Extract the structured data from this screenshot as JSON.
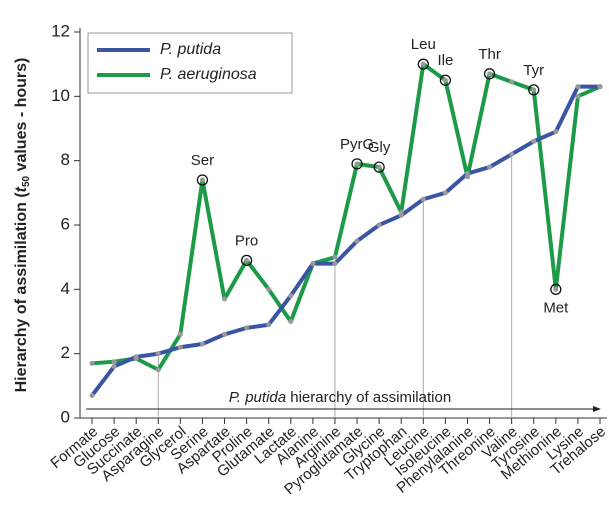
{
  "chart_data": {
    "type": "line",
    "ylabel": {
      "prefix": "Hierarchy of assimilation (",
      "italic": "t",
      "sub": "50",
      "suffix": " values - hours)"
    },
    "categories": [
      "Formate",
      "Glucose",
      "Succinate",
      "Asparagine",
      "Glycerol",
      "Serine",
      "Aspartate",
      "Proline",
      "Glutamate",
      "Lactate",
      "Alanine",
      "Arginine",
      "Pyroglutamate",
      "Glycine",
      "Tryptophan",
      "Leucine",
      "Isoleucine",
      "Phenylalanine",
      "Threonine",
      "Valine",
      "Tyrosine",
      "Methionine",
      "Lysine",
      "Trehalose"
    ],
    "series": [
      {
        "name": "P. putida",
        "color": "#3a55a4",
        "values": [
          0.7,
          1.6,
          1.9,
          2.0,
          2.2,
          2.3,
          2.6,
          2.8,
          2.9,
          3.8,
          4.8,
          4.8,
          5.5,
          6.0,
          6.3,
          6.8,
          7.0,
          7.6,
          7.8,
          8.2,
          8.6,
          8.9,
          10.3,
          10.3
        ]
      },
      {
        "name": "P. aeruginosa",
        "color": "#1c9a48",
        "values": [
          1.7,
          1.75,
          1.85,
          1.5,
          2.6,
          7.4,
          3.7,
          4.9,
          4.0,
          3.0,
          4.8,
          5.0,
          7.9,
          7.8,
          6.4,
          11.0,
          10.5,
          7.5,
          10.7,
          10.45,
          10.2,
          4.0,
          10.0,
          10.3
        ]
      }
    ],
    "ylim": [
      0,
      12
    ],
    "yticks": [
      0,
      2,
      4,
      6,
      8,
      10,
      12
    ],
    "legend": "upper left",
    "annotations": [
      {
        "text": "Ser",
        "category": "Serine",
        "position": "above"
      },
      {
        "text": "Pro",
        "category": "Proline",
        "position": "above"
      },
      {
        "text": "PyrG",
        "category": "Pyroglutamate",
        "position": "above"
      },
      {
        "text": "Gly",
        "category": "Glycine",
        "position": "above"
      },
      {
        "text": "Leu",
        "category": "Leucine",
        "position": "above"
      },
      {
        "text": "Ile",
        "category": "Isoleucine",
        "position": "above"
      },
      {
        "text": "Thr",
        "category": "Threonine",
        "position": "above"
      },
      {
        "text": "Tyr",
        "category": "Tyrosine",
        "position": "above"
      },
      {
        "text": "Met",
        "category": "Methionine",
        "position": "below"
      }
    ],
    "guides": [
      "Asparagine",
      "Arginine",
      "Leucine",
      "Valine"
    ],
    "arrow_label": {
      "italic": "P. putida",
      "rest": " hierarchy of assimilation"
    }
  }
}
